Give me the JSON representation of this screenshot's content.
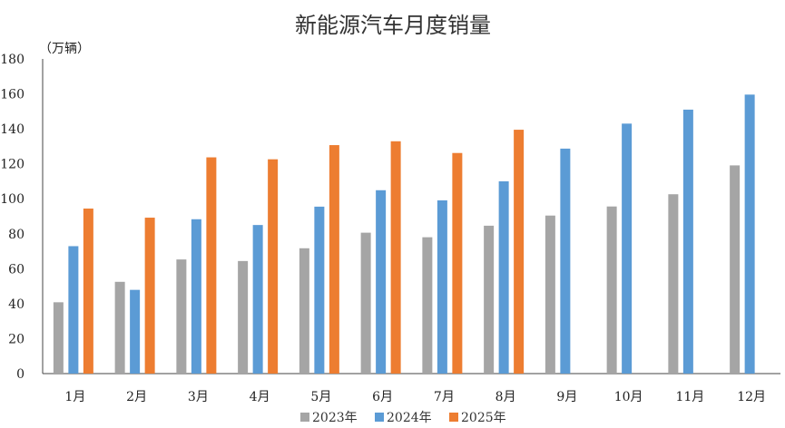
{
  "chart_data": {
    "type": "bar",
    "title": "新能源汽车月度销量",
    "ylabel": "（万辆）",
    "xlabel": "",
    "categories": [
      "1月",
      "2月",
      "3月",
      "4月",
      "5月",
      "6月",
      "7月",
      "8月",
      "9月",
      "10月",
      "11月",
      "12月"
    ],
    "ylim": [
      0,
      180
    ],
    "yticks": [
      0,
      20,
      40,
      60,
      80,
      100,
      120,
      140,
      160,
      180
    ],
    "grid": false,
    "legend_position": "bottom",
    "series": [
      {
        "name": "2023年",
        "color": "#a5a5a5",
        "values": [
          40.8,
          52.5,
          65.3,
          64.4,
          71.7,
          80.6,
          78.0,
          84.6,
          90.4,
          95.6,
          102.6,
          119.1
        ]
      },
      {
        "name": "2024年",
        "color": "#5b9bd5",
        "values": [
          72.9,
          47.9,
          88.3,
          85.0,
          95.5,
          104.9,
          99.1,
          110.0,
          128.7,
          143.0,
          151.0,
          159.6
        ]
      },
      {
        "name": "2025年",
        "color": "#ed7d31",
        "values": [
          94.4,
          89.2,
          123.7,
          122.6,
          130.7,
          132.9,
          126.2,
          139.5,
          null,
          null,
          null,
          null
        ]
      }
    ]
  }
}
